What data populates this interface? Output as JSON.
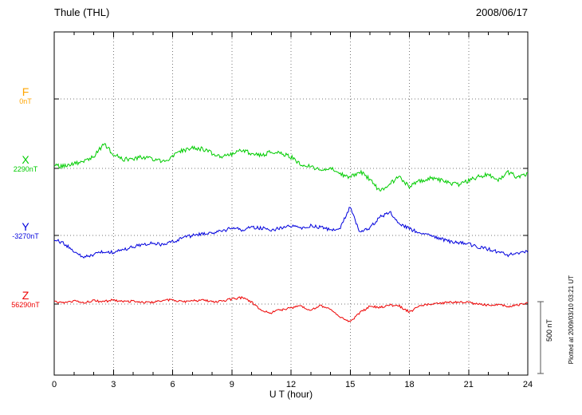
{
  "header": {
    "station": "Thule (THL)",
    "date": "2008/06/17"
  },
  "chart_data": {
    "type": "line",
    "title": "Thule (THL) magnetogram 2008/06/17",
    "xlabel": "U T (hour)",
    "xlim": [
      0,
      24
    ],
    "x_ticks": [
      0,
      3,
      6,
      9,
      12,
      15,
      18,
      21,
      24
    ],
    "x_step": 0.5,
    "grid": "dotted vertical lines every 3 hours, dotted horizontal baseline per component",
    "units": "values are nT offsets from each component baseline",
    "scale_bar": {
      "label": "500 nT",
      "nT": 500
    },
    "plotted_at": "Plotted at 2009/03/10 03:21 UT",
    "series": [
      {
        "name": "F",
        "baseline_label": "0nT",
        "baseline_nT": 0,
        "color": "#ffa500",
        "has_trace": false,
        "noise_nT": 0,
        "values": []
      },
      {
        "name": "X",
        "baseline_label": "2290nT",
        "baseline_nT": 2290,
        "color": "#00cc00",
        "has_trace": true,
        "noise_nT": 15,
        "values": [
          20,
          15,
          30,
          45,
          80,
          170,
          100,
          60,
          70,
          80,
          60,
          50,
          80,
          125,
          140,
          135,
          105,
          80,
          100,
          125,
          105,
          90,
          115,
          105,
          80,
          30,
          10,
          -10,
          0,
          -40,
          -60,
          -20,
          -75,
          -160,
          -105,
          -60,
          -130,
          -90,
          -70,
          -80,
          -100,
          -115,
          -85,
          -60,
          -40,
          -80,
          -30,
          -60,
          -40
        ]
      },
      {
        "name": "Y",
        "baseline_label": "-3270nT",
        "baseline_nT": -3270,
        "color": "#0000dd",
        "has_trace": true,
        "noise_nT": 12,
        "values": [
          -30,
          -55,
          -110,
          -150,
          -135,
          -110,
          -120,
          -100,
          -80,
          -65,
          -55,
          -65,
          -45,
          -20,
          0,
          10,
          20,
          30,
          50,
          40,
          60,
          50,
          40,
          50,
          65,
          50,
          70,
          55,
          40,
          55,
          200,
          15,
          55,
          125,
          165,
          80,
          45,
          20,
          0,
          -20,
          -40,
          -50,
          -60,
          -80,
          -95,
          -115,
          -135,
          -120,
          -110
        ]
      },
      {
        "name": "Z",
        "baseline_label": "56290nT",
        "baseline_nT": 56290,
        "color": "#ee0000",
        "has_trace": true,
        "noise_nT": 8,
        "values": [
          15,
          5,
          20,
          10,
          25,
          15,
          30,
          15,
          20,
          10,
          15,
          25,
          30,
          15,
          20,
          30,
          15,
          20,
          35,
          45,
          15,
          -50,
          -60,
          -40,
          -25,
          -15,
          -40,
          -10,
          -35,
          -90,
          -120,
          -60,
          -15,
          -25,
          -5,
          -15,
          -55,
          -15,
          0,
          5,
          10,
          15,
          10,
          0,
          -10,
          0,
          -15,
          -5,
          5
        ]
      }
    ]
  }
}
